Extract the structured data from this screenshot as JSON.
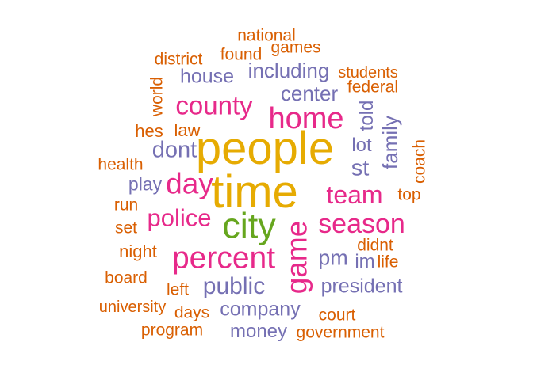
{
  "colors": {
    "orange": "#D95F02",
    "purple": "#7570B3",
    "magenta": "#E7298A",
    "mustard": "#E6AB02",
    "green": "#66A61E"
  },
  "words": [
    {
      "text": "national",
      "color": "orange"
    },
    {
      "text": "found",
      "color": "orange"
    },
    {
      "text": "games",
      "color": "orange"
    },
    {
      "text": "district",
      "color": "orange"
    },
    {
      "text": "house",
      "color": "purple"
    },
    {
      "text": "including",
      "color": "purple"
    },
    {
      "text": "students",
      "color": "orange"
    },
    {
      "text": "federal",
      "color": "orange"
    },
    {
      "text": "world",
      "color": "orange"
    },
    {
      "text": "center",
      "color": "purple"
    },
    {
      "text": "county",
      "color": "magenta"
    },
    {
      "text": "told",
      "color": "purple"
    },
    {
      "text": "home",
      "color": "magenta"
    },
    {
      "text": "hes",
      "color": "orange"
    },
    {
      "text": "law",
      "color": "orange"
    },
    {
      "text": "family",
      "color": "purple"
    },
    {
      "text": "people",
      "color": "mustard"
    },
    {
      "text": "dont",
      "color": "purple"
    },
    {
      "text": "lot",
      "color": "purple"
    },
    {
      "text": "coach",
      "color": "orange"
    },
    {
      "text": "health",
      "color": "orange"
    },
    {
      "text": "st",
      "color": "purple"
    },
    {
      "text": "time",
      "color": "mustard"
    },
    {
      "text": "day",
      "color": "magenta"
    },
    {
      "text": "play",
      "color": "purple"
    },
    {
      "text": "team",
      "color": "magenta"
    },
    {
      "text": "top",
      "color": "orange"
    },
    {
      "text": "run",
      "color": "orange"
    },
    {
      "text": "police",
      "color": "magenta"
    },
    {
      "text": "city",
      "color": "green"
    },
    {
      "text": "season",
      "color": "magenta"
    },
    {
      "text": "set",
      "color": "orange"
    },
    {
      "text": "game",
      "color": "magenta"
    },
    {
      "text": "didnt",
      "color": "orange"
    },
    {
      "text": "night",
      "color": "orange"
    },
    {
      "text": "percent",
      "color": "magenta"
    },
    {
      "text": "pm",
      "color": "purple"
    },
    {
      "text": "im",
      "color": "purple"
    },
    {
      "text": "life",
      "color": "orange"
    },
    {
      "text": "board",
      "color": "orange"
    },
    {
      "text": "public",
      "color": "purple"
    },
    {
      "text": "president",
      "color": "purple"
    },
    {
      "text": "left",
      "color": "orange"
    },
    {
      "text": "university",
      "color": "orange"
    },
    {
      "text": "days",
      "color": "orange"
    },
    {
      "text": "company",
      "color": "purple"
    },
    {
      "text": "court",
      "color": "orange"
    },
    {
      "text": "program",
      "color": "orange"
    },
    {
      "text": "money",
      "color": "purple"
    },
    {
      "text": "government",
      "color": "orange"
    }
  ]
}
